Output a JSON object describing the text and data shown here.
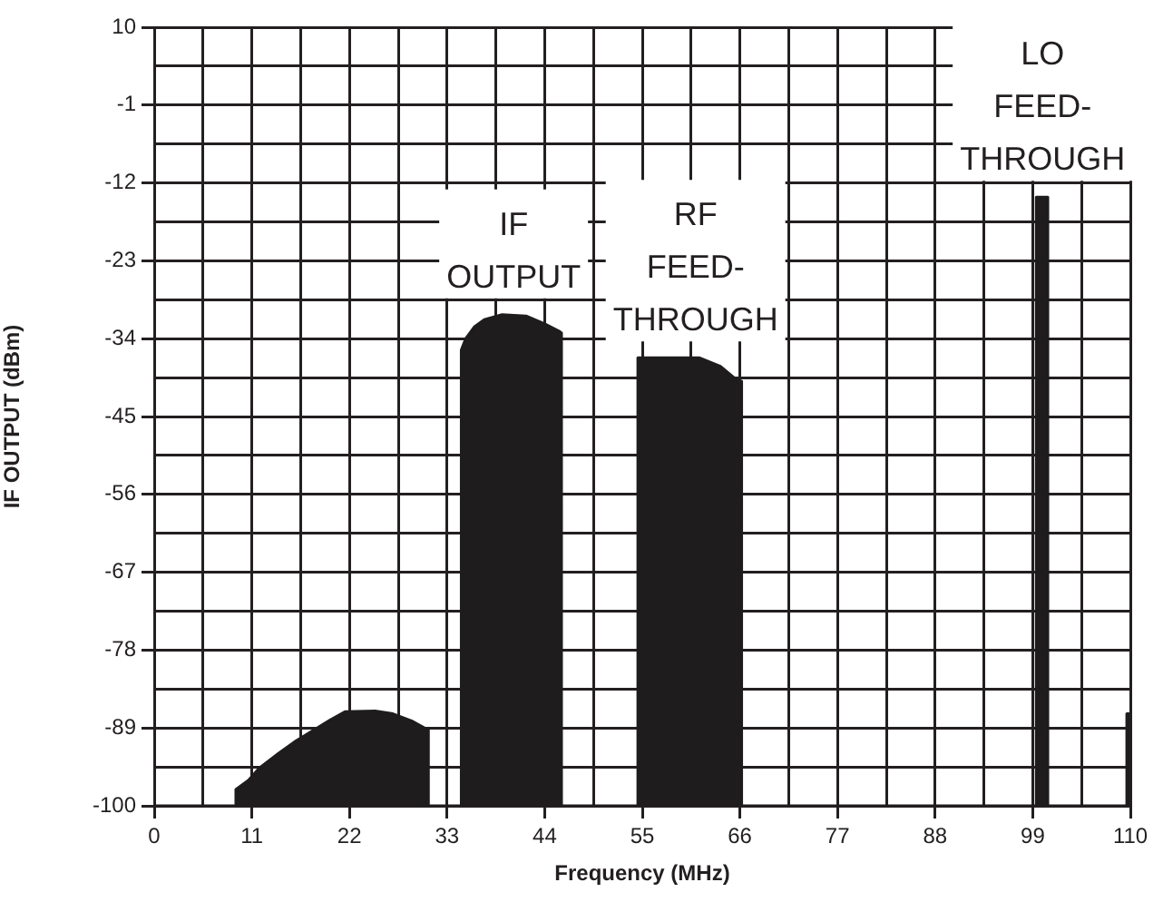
{
  "chart_data": {
    "type": "area",
    "xlabel": "Frequency (MHz)",
    "ylabel": "IF OUTPUT (dBm)",
    "x": [
      0,
      9.2,
      9.2,
      10.6,
      11.9,
      14.0,
      16.0,
      18.1,
      19.8,
      21.5,
      24.9,
      26.9,
      29.0,
      30.9,
      30.9,
      34.6,
      34.6,
      35.1,
      36.1,
      37.2,
      39.2,
      41.9,
      44.0,
      45.7,
      45.9,
      45.9,
      54.5,
      54.5,
      61.4,
      63.8,
      65.8,
      66.2,
      66.2,
      99.4,
      99.4,
      100.7,
      100.7,
      109.6,
      109.6,
      110
    ],
    "values": [
      -100,
      -100,
      -97.7,
      -96.4,
      -94.6,
      -92.6,
      -90.8,
      -89.2,
      -87.9,
      -86.7,
      -86.6,
      -87.0,
      -88.0,
      -89.3,
      -100,
      -100,
      -35.6,
      -34.0,
      -32.3,
      -31.3,
      -30.6,
      -30.8,
      -31.9,
      -33.0,
      -33.2,
      -100,
      -100,
      -36.7,
      -36.7,
      -37.9,
      -40.0,
      -40.0,
      -100,
      -100,
      -14,
      -14,
      -100,
      -100,
      -87,
      -87
    ],
    "color": "#1e1c1c",
    "xlim": [
      0,
      110
    ],
    "ylim": [
      -100,
      10
    ],
    "xticks": [
      0,
      {
        "value": 5.5,
        "label": null
      },
      11,
      {
        "value": 16.5,
        "label": null
      },
      22,
      {
        "value": 27.5,
        "label": null
      },
      33,
      {
        "value": 38.5,
        "label": null
      },
      44,
      {
        "value": 49.5,
        "label": null
      },
      55,
      {
        "value": 60.5,
        "label": null
      },
      66,
      {
        "value": 71.5,
        "label": null
      },
      77,
      {
        "value": 82.5,
        "label": null
      },
      88,
      {
        "value": 93.5,
        "label": null
      },
      99,
      {
        "value": 104.5,
        "label": null
      },
      110
    ],
    "yticks": [
      10,
      {
        "value": 4.5,
        "label": null
      },
      -1,
      {
        "value": -6.5,
        "label": null
      },
      -12,
      {
        "value": -17.5,
        "label": null
      },
      -23,
      {
        "value": -28.5,
        "label": null
      },
      -34,
      {
        "value": -39.5,
        "label": null
      },
      -45,
      {
        "value": -50.5,
        "label": null
      },
      -56,
      {
        "value": -61.5,
        "label": null
      },
      -67,
      {
        "value": -72.5,
        "label": null
      },
      -78,
      {
        "value": -83.5,
        "label": null
      },
      -89,
      {
        "value": -94.5,
        "label": null
      },
      -100
    ],
    "grid": true,
    "annotations": [
      {
        "text": "IF\nOUTPUT",
        "x": 40.5,
        "y": -30.6
      },
      {
        "text": "RF\nFEED-\nTHROUGH",
        "x": 61,
        "y": -36.7
      },
      {
        "text": "LO\nFEED-\nTHROUGH",
        "x": 100.1,
        "y": -14
      }
    ]
  }
}
